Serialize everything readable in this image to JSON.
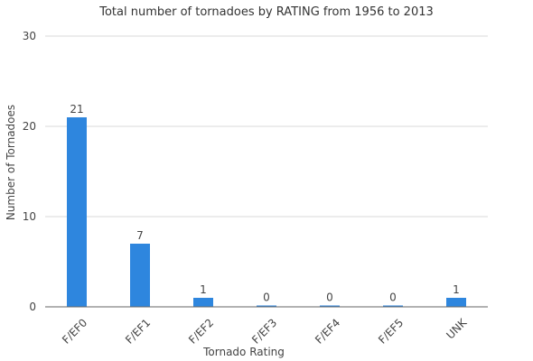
{
  "chart_data": {
    "type": "bar",
    "title": "Total number of tornadoes by RATING from 1956 to 2013",
    "xlabel": "Tornado Rating",
    "ylabel": "Number of Tornadoes",
    "categories": [
      "F/EF0",
      "F/EF1",
      "F/EF2",
      "F/EF3",
      "F/EF4",
      "F/EF5",
      "UNK"
    ],
    "values": [
      21,
      7,
      1,
      0,
      0,
      0,
      1
    ],
    "data_labels": [
      "21",
      "7",
      "1",
      "0",
      "0",
      "0",
      "1"
    ],
    "ylim": [
      0,
      30
    ],
    "yticks": [
      0,
      10,
      20,
      30
    ],
    "ytick_labels": [
      "0",
      "10",
      "20",
      "30"
    ],
    "grid": true,
    "legend": "none",
    "bar_color": "#2e86de"
  }
}
